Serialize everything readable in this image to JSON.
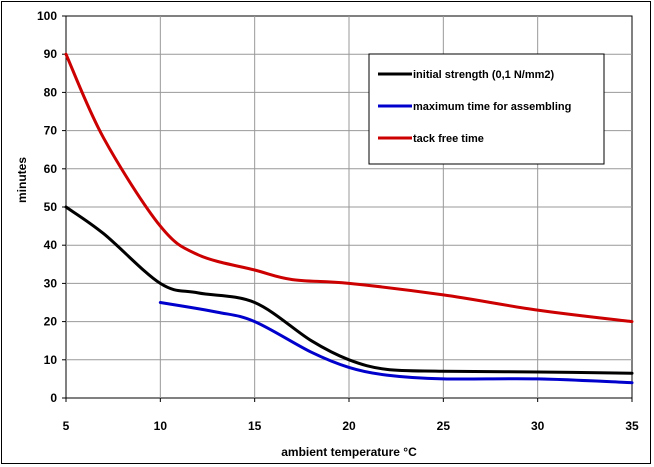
{
  "chart_data": {
    "type": "line",
    "xlabel": "ambient temperature °C",
    "ylabel": "minutes",
    "xlim": [
      5,
      35
    ],
    "ylim": [
      0,
      100
    ],
    "x_ticks": [
      5,
      10,
      15,
      20,
      25,
      30,
      35
    ],
    "y_ticks": [
      0,
      10,
      20,
      30,
      40,
      50,
      60,
      70,
      80,
      90,
      100
    ],
    "grid": true,
    "legend_position": "top-right",
    "series": [
      {
        "name": "initial strength (0,1 N/mm2)",
        "color": "#000000",
        "points": [
          [
            5,
            50
          ],
          [
            7,
            43
          ],
          [
            10,
            30
          ],
          [
            12,
            27.5
          ],
          [
            15,
            25
          ],
          [
            18,
            15
          ],
          [
            20,
            10
          ],
          [
            22,
            7.5
          ],
          [
            25,
            7
          ],
          [
            30,
            6.8
          ],
          [
            35,
            6.5
          ]
        ]
      },
      {
        "name": "maximum time for assembling",
        "color": "#0000cc",
        "points": [
          [
            10,
            25
          ],
          [
            13,
            22.5
          ],
          [
            15,
            20
          ],
          [
            18,
            12
          ],
          [
            20,
            8
          ],
          [
            22,
            6
          ],
          [
            25,
            5
          ],
          [
            30,
            5
          ],
          [
            35,
            4
          ]
        ]
      },
      {
        "name": "tack free time",
        "color": "#cc0000",
        "points": [
          [
            5,
            90
          ],
          [
            7,
            68
          ],
          [
            10,
            45
          ],
          [
            12,
            37.5
          ],
          [
            15,
            33.5
          ],
          [
            17,
            31
          ],
          [
            20,
            30
          ],
          [
            25,
            27
          ],
          [
            30,
            23
          ],
          [
            35,
            20
          ]
        ]
      }
    ]
  }
}
